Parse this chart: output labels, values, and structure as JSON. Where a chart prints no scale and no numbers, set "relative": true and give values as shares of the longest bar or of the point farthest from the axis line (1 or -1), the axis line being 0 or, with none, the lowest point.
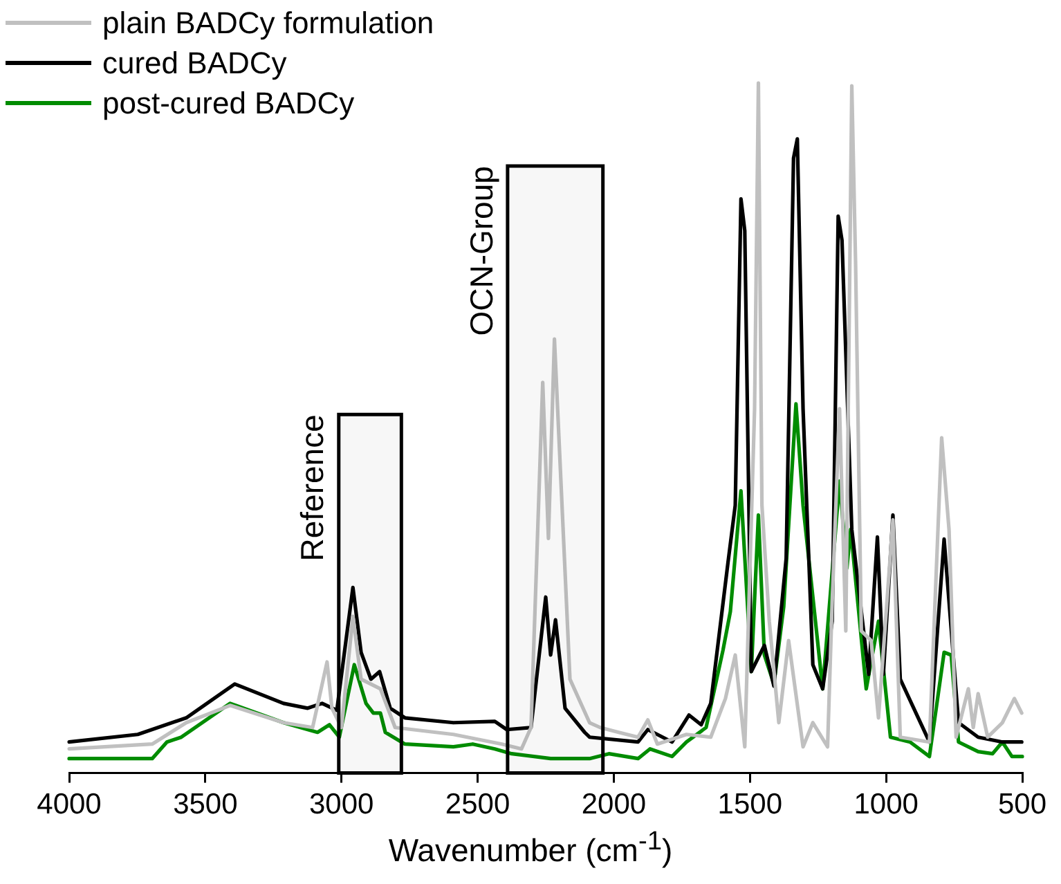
{
  "chart_data": {
    "type": "line",
    "relative": true,
    "xlabel": "Wavenumber (cm$^{-1}$)",
    "xlim": [
      4000,
      500
    ],
    "xticks": [
      4000,
      3500,
      3000,
      2500,
      2000,
      1500,
      1000,
      500
    ],
    "legend": "top left",
    "marker": "none",
    "line_style": "solid",
    "bands": [
      {
        "axis": "x",
        "from": 3010,
        "to": 2780,
        "label": "Reference",
        "color": "#000000"
      },
      {
        "axis": "x",
        "from": 2390,
        "to": 2040,
        "label": "OCN-Group",
        "color": "#000000"
      }
    ],
    "series": [
      {
        "name": "plain BADCy formulation",
        "color": "#c0c0c0",
        "x": [
          4000,
          3695,
          3570,
          3409,
          3213,
          3106,
          3053,
          3035,
          3000,
          2958,
          2928,
          2857,
          2803,
          2589,
          2411,
          2339,
          2304,
          2261,
          2240,
          2218,
          2161,
          2089,
          2050,
          1982,
          1911,
          1875,
          1840,
          1733,
          1644,
          1590,
          1554,
          1519,
          1483,
          1469,
          1456,
          1429,
          1394,
          1358,
          1305,
          1269,
          1215,
          1198,
          1171,
          1148,
          1126,
          1112,
          1091,
          1055,
          1028,
          975,
          948,
          841,
          796,
          769,
          743,
          698,
          680,
          662,
          627,
          573,
          529,
          502
        ],
        "values": [
          0.035,
          0.042,
          0.073,
          0.098,
          0.073,
          0.066,
          0.161,
          0.094,
          0.066,
          0.227,
          0.136,
          0.122,
          0.066,
          0.056,
          0.042,
          0.035,
          0.066,
          0.566,
          0.34,
          0.629,
          0.136,
          0.073,
          0.066,
          0.059,
          0.052,
          0.077,
          0.042,
          0.056,
          0.052,
          0.108,
          0.171,
          0.038,
          0.528,
          1,
          0.388,
          0.22,
          0.073,
          0.192,
          0.038,
          0.073,
          0.038,
          0.248,
          0.528,
          0.206,
          0.996,
          0.737,
          0.206,
          0.192,
          0.08,
          0.367,
          0.052,
          0.045,
          0.486,
          0.353,
          0.052,
          0.122,
          0.066,
          0.115,
          0.052,
          0.073,
          0.108,
          0.087
        ]
      },
      {
        "name": "cured BADCy",
        "color": "#000000",
        "x": [
          4000,
          3748,
          3570,
          3392,
          3213,
          3124,
          3071,
          3017,
          2958,
          2928,
          2892,
          2860,
          2821,
          2767,
          2589,
          2437,
          2393,
          2304,
          2250,
          2232,
          2214,
          2179,
          2107,
          2089,
          1911,
          1875,
          1786,
          1724,
          1679,
          1644,
          1581,
          1554,
          1533,
          1519,
          1495,
          1447,
          1412,
          1367,
          1340,
          1326,
          1305,
          1269,
          1233,
          1198,
          1176,
          1162,
          1126,
          1064,
          1032,
          1010,
          975,
          948,
          841,
          787,
          734,
          662,
          573,
          502
        ],
        "values": [
          0.045,
          0.056,
          0.08,
          0.129,
          0.101,
          0.094,
          0.101,
          0.091,
          0.269,
          0.175,
          0.136,
          0.147,
          0.094,
          0.08,
          0.073,
          0.075,
          0.063,
          0.066,
          0.255,
          0.171,
          0.222,
          0.094,
          0.059,
          0.052,
          0.045,
          0.063,
          0.045,
          0.084,
          0.07,
          0.101,
          0.304,
          0.388,
          0.832,
          0.786,
          0.147,
          0.185,
          0.126,
          0.311,
          0.891,
          0.919,
          0.528,
          0.157,
          0.122,
          0.22,
          0.807,
          0.772,
          0.353,
          0.143,
          0.342,
          0.143,
          0.374,
          0.136,
          0.045,
          0.339,
          0.073,
          0.052,
          0.045,
          0.045
        ]
      },
      {
        "name": "post-cured BADCy",
        "color": "#008c00",
        "x": [
          4000,
          3695,
          3641,
          3588,
          3409,
          3213,
          3088,
          3044,
          3008,
          2953,
          2910,
          2883,
          2857,
          2839,
          2767,
          2589,
          2518,
          2437,
          2375,
          2232,
          2089,
          2018,
          1911,
          1867,
          1786,
          1733,
          1661,
          1599,
          1572,
          1533,
          1495,
          1469,
          1447,
          1412,
          1376,
          1331,
          1305,
          1233,
          1171,
          1144,
          1130,
          1073,
          1028,
          984,
          912,
          841,
          787,
          761,
          734,
          662,
          609,
          573,
          538,
          500
        ],
        "values": [
          0.021,
          0.021,
          0.045,
          0.052,
          0.101,
          0.073,
          0.059,
          0.07,
          0.052,
          0.157,
          0.101,
          0.087,
          0.087,
          0.059,
          0.042,
          0.038,
          0.042,
          0.035,
          0.028,
          0.021,
          0.021,
          0.028,
          0.021,
          0.035,
          0.024,
          0.045,
          0.066,
          0.178,
          0.234,
          0.409,
          0.147,
          0.374,
          0.171,
          0.129,
          0.241,
          0.535,
          0.388,
          0.122,
          0.423,
          0.297,
          0.353,
          0.122,
          0.22,
          0.052,
          0.045,
          0.024,
          0.175,
          0.171,
          0.045,
          0.031,
          0.028,
          0.045,
          0.024,
          0.024
        ]
      }
    ]
  }
}
